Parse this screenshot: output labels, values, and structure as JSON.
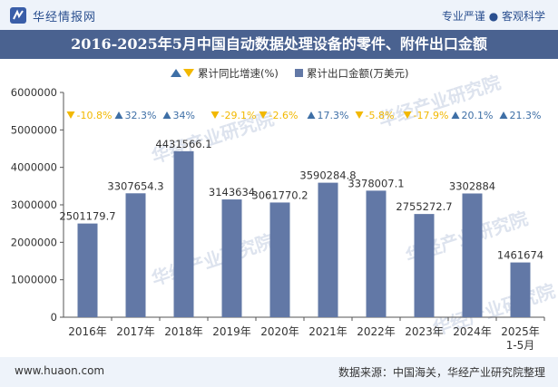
{
  "header": {
    "brand": "华经情报网",
    "tagline": "专业严谨 ● 客观科学"
  },
  "title": "2016-2025年5月中国自动数据处理设备的零件、附件出口金额",
  "footer": {
    "site": "www.huaon.com",
    "source": "数据来源：中国海关，华经产业研究院整理"
  },
  "watermark": "华经产业研究院",
  "chart_data": {
    "type": "bar",
    "categories": [
      "2016年",
      "2017年",
      "2018年",
      "2019年",
      "2020年",
      "2021年",
      "2022年",
      "2023年",
      "2024年",
      "2025年\n1-5月"
    ],
    "series": [
      {
        "name": "累计出口金额(万美元)",
        "type": "bar",
        "values": [
          2501179.7,
          3307654.3,
          4431566.1,
          3143634,
          3061770.2,
          3590284.8,
          3378007.1,
          2755272.7,
          3302884,
          1461674
        ],
        "labels": [
          "2501179.7",
          "3307654.3",
          "4431566.1",
          "3143634",
          "3061770.2",
          "3590284.8",
          "3378007.1",
          "2755272.7",
          "3302884",
          "1461674"
        ]
      },
      {
        "name": "累计同比增速(%)",
        "type": "marker",
        "values": [
          -10.8,
          32.3,
          34,
          -29.1,
          -2.6,
          17.3,
          -5.8,
          -17.9,
          20.1,
          21.3
        ],
        "labels": [
          "-10.8%",
          "32.3%",
          "34%",
          "-29.1%",
          "-2.6%",
          "17.3%",
          "-5.8%",
          "-17.9%",
          "20.1%",
          "21.3%"
        ]
      }
    ],
    "y_ticks": [
      "0",
      "1000000",
      "2000000",
      "3000000",
      "4000000",
      "5000000",
      "6000000"
    ],
    "ylim": [
      0,
      6000000
    ],
    "legend_position": "top-center",
    "grid": false,
    "colors": {
      "bar": "#6278a6",
      "up": "#3e6fa6",
      "down": "#f2b800",
      "axis": "#555555",
      "text": "#333333",
      "watermark": "#dde3ee"
    }
  }
}
